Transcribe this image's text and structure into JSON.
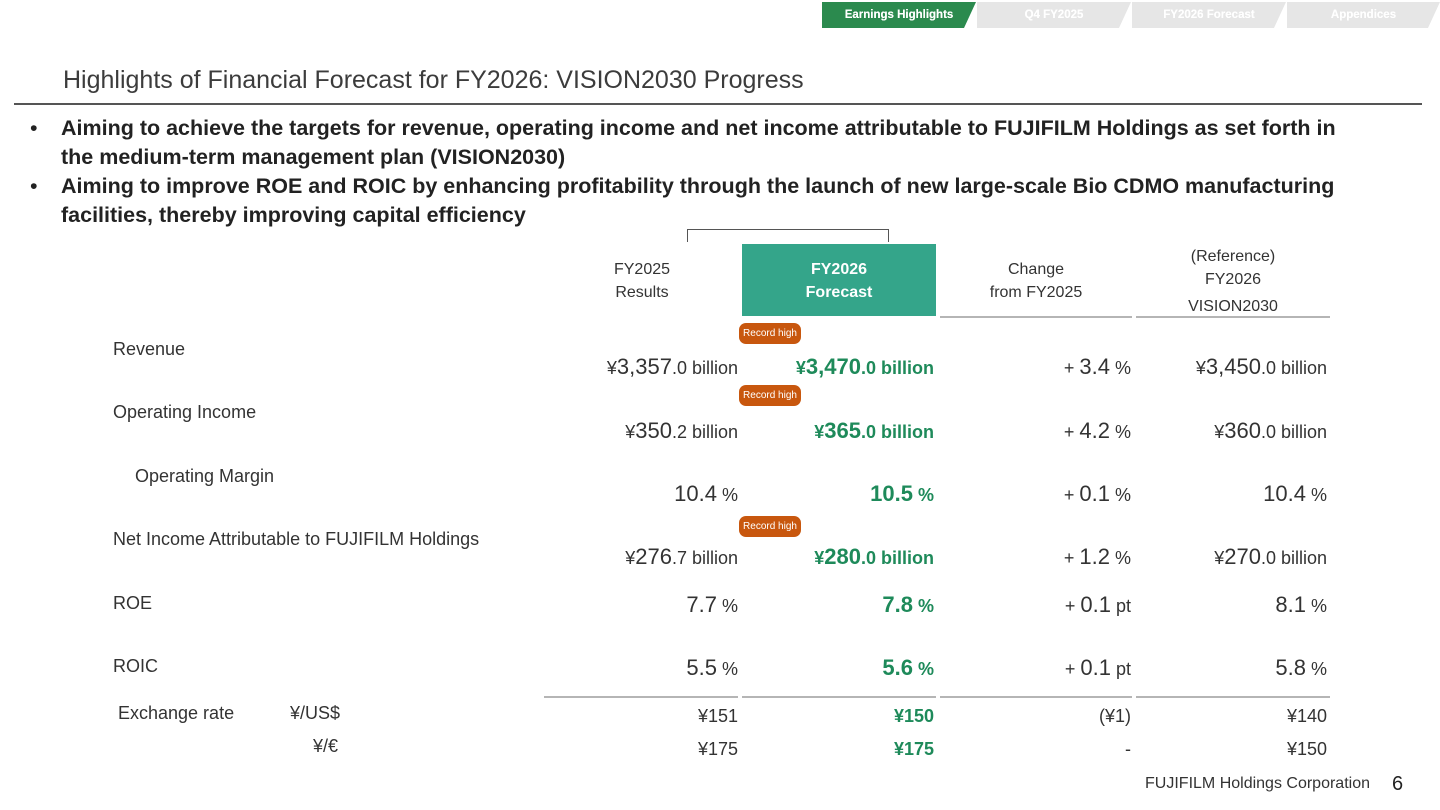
{
  "nav": {
    "tabs": [
      {
        "label": "Earnings Highlights",
        "active": true
      },
      {
        "label": "Q4 FY2025",
        "active": false
      },
      {
        "label": "FY2026 Forecast",
        "active": false
      },
      {
        "label": "Appendices",
        "active": false
      }
    ]
  },
  "title": "Highlights of Financial Forecast for FY2026: VISION2030 Progress",
  "bullets": [
    "Aiming to achieve the targets for revenue, operating income and net income attributable to FUJIFILM Holdings as set forth in the medium-term management plan (VISION2030)",
    "Aiming to improve ROE and ROIC by enhancing profitability through the launch of new large-scale Bio CDMO manufacturing facilities, thereby improving capital efficiency"
  ],
  "bullet_marker": "•",
  "columns": {
    "fy2025": {
      "line1": "FY2025",
      "line2": "Results"
    },
    "fy2026": {
      "line1": "FY2026",
      "line2": "Forecast"
    },
    "change": {
      "line1": "Change",
      "line2": "from FY2025"
    },
    "vision": {
      "line1": "(Reference)",
      "line2": "FY2026",
      "line3": "VISION2030"
    }
  },
  "badge_label": "Record high",
  "rows": [
    {
      "label": "Revenue",
      "fy2025": {
        "pre": "¥",
        "main": "3,357",
        "suf": ".0 billion"
      },
      "fy2026": {
        "pre": "¥",
        "main": "3,470",
        "suf": ".0 billion"
      },
      "change": {
        "pre": "+ ",
        "main": "3.4",
        "suf": " %"
      },
      "vision": {
        "pre": "¥",
        "main": "3,450",
        "suf": ".0 billion"
      }
    },
    {
      "label": "Operating Income",
      "fy2025": {
        "pre": "¥",
        "main": "350",
        "suf": ".2 billion"
      },
      "fy2026": {
        "pre": "¥",
        "main": "365",
        "suf": ".0 billion"
      },
      "change": {
        "pre": "+ ",
        "main": "4.2",
        "suf": " %"
      },
      "vision": {
        "pre": "¥",
        "main": "360",
        "suf": ".0 billion"
      }
    },
    {
      "label": "Operating Margin",
      "fy2025": {
        "pre": "",
        "main": "10.4",
        "suf": " %"
      },
      "fy2026": {
        "pre": "",
        "main": "10.5",
        "suf": " %"
      },
      "change": {
        "pre": "+ ",
        "main": "0.1",
        "suf": " %"
      },
      "vision": {
        "pre": "",
        "main": "10.4",
        "suf": " %"
      }
    },
    {
      "label": "Net Income Attributable to FUJIFILM Holdings",
      "fy2025": {
        "pre": "¥",
        "main": "276",
        "suf": ".7 billion"
      },
      "fy2026": {
        "pre": "¥",
        "main": "280",
        "suf": ".0 billion"
      },
      "change": {
        "pre": "+ ",
        "main": "1.2",
        "suf": " %"
      },
      "vision": {
        "pre": "¥",
        "main": "270",
        "suf": ".0 billion"
      }
    },
    {
      "label": "ROE",
      "fy2025": {
        "pre": "",
        "main": "7.7",
        "suf": " %"
      },
      "fy2026": {
        "pre": "",
        "main": "7.8",
        "suf": " %"
      },
      "change": {
        "pre": "+ ",
        "main": "0.1",
        "suf": " pt"
      },
      "vision": {
        "pre": "",
        "main": "8.1",
        "suf": " %"
      }
    },
    {
      "label": "ROIC",
      "fy2025": {
        "pre": "",
        "main": "5.5",
        "suf": " %"
      },
      "fy2026": {
        "pre": "",
        "main": "5.6",
        "suf": " %"
      },
      "change": {
        "pre": "+ ",
        "main": "0.1",
        "suf": " pt"
      },
      "vision": {
        "pre": "",
        "main": "5.8",
        "suf": " %"
      }
    }
  ],
  "exchange": {
    "label": "Exchange rate",
    "usd": {
      "unit": "¥/US$",
      "fy2025": "¥151",
      "fy2026": "¥150",
      "change": "(¥1)",
      "vision": "¥140"
    },
    "eur": {
      "unit": "¥/€",
      "fy2025": "¥175",
      "fy2026": "¥175",
      "change": "-",
      "vision": "¥150"
    }
  },
  "footer": {
    "company": "FUJIFILM Holdings Corporation",
    "page": "6"
  },
  "colors": {
    "accent_green": "#34a58a",
    "value_green": "#1e8a5a",
    "badge_orange": "#c8570e",
    "nav_active": "#2b8a4e"
  }
}
